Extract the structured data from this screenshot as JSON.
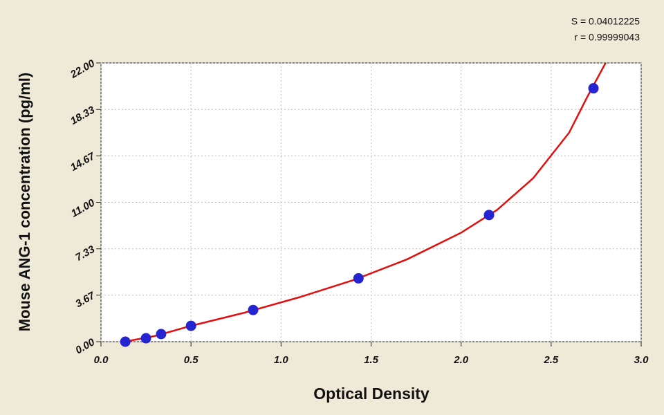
{
  "chart_data": {
    "type": "scatter",
    "annotations": [
      "S = 0.04012225",
      "r = 0.99999043"
    ],
    "x_label": "Optical Density",
    "y_label": "Mouse ANG-1 concentration (pg/ml)",
    "xlim": [
      0,
      3.0
    ],
    "ylim": [
      0,
      22.0
    ],
    "xticks": [
      {
        "value": 0,
        "label": "0.0"
      },
      0.5,
      {
        "value": 1,
        "label": "1.0"
      },
      1.5,
      {
        "value": 2,
        "label": "2.0"
      },
      2.5,
      {
        "value": 3,
        "label": "3.0"
      }
    ],
    "yticks": [
      {
        "value": 0,
        "label": "0.00"
      },
      {
        "value": 3.67,
        "label": "3.67"
      },
      {
        "value": 7.33,
        "label": "7.33"
      },
      {
        "value": 11,
        "label": "11.00"
      },
      {
        "value": 14.67,
        "label": "14.67"
      },
      {
        "value": 18.33,
        "label": "18.33"
      },
      {
        "value": 22,
        "label": "22.00"
      }
    ],
    "grid": true,
    "series": [
      {
        "type": "line",
        "color": "#e01010",
        "x": [
          0.13,
          0.3,
          0.5,
          0.8,
          1.1,
          1.4,
          1.7,
          2.0,
          2.2,
          2.4,
          2.6,
          2.7,
          2.81
        ],
        "values": [
          0,
          0.45,
          1.25,
          2.3,
          3.5,
          4.85,
          6.5,
          8.6,
          10.4,
          12.9,
          16.5,
          19.3,
          22.2
        ]
      },
      {
        "type": "scatter",
        "color": "#2424d0",
        "x": [
          0.135,
          0.25,
          0.334,
          0.5,
          0.845,
          1.43,
          2.155,
          2.735
        ],
        "values": [
          0,
          0.27,
          0.6,
          1.25,
          2.5,
          5.0,
          10.0,
          20.0
        ]
      }
    ]
  }
}
